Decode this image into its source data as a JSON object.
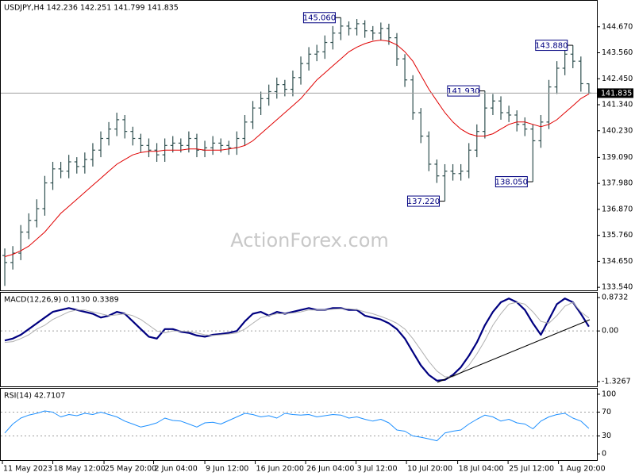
{
  "chart_data": [
    {
      "type": "ohlc",
      "title": "USDJPY,H4  142.236 142.251 141.799 141.835",
      "watermark": "ActionForex.com",
      "color": "#2f4f4f",
      "xlim": [
        -0.5,
        74
      ],
      "xticks": [
        {
          "value": -0.3,
          "label": "11 May 2023"
        },
        {
          "value": 6,
          "label": "18 May 12:00"
        },
        {
          "value": 12.4,
          "label": "25 May 20:00"
        },
        {
          "value": 18.6,
          "label": "2 Jun 04:00"
        },
        {
          "value": 25,
          "label": "9 Jun 12:00"
        },
        {
          "value": 31.3,
          "label": "16 Jun 20:00"
        },
        {
          "value": 37.6,
          "label": "26 Jun 04:00"
        },
        {
          "value": 43.9,
          "label": "3 Jul 12:00"
        },
        {
          "value": 50.2,
          "label": "10 Jul 20:00"
        },
        {
          "value": 56.6,
          "label": "18 Jul 04:00"
        },
        {
          "value": 62.9,
          "label": "25 Jul 12:00"
        },
        {
          "value": 69.2,
          "label": "1 Aug 20:00"
        }
      ],
      "ylim": [
        133.41,
        145.78
      ],
      "yticks": [
        {
          "value": 144.67,
          "label": "144.670"
        },
        {
          "value": 143.56,
          "label": "143.560"
        },
        {
          "value": 142.45,
          "label": "142.450"
        },
        {
          "value": 141.34,
          "label": "141.340"
        },
        {
          "value": 140.23,
          "label": "140.230"
        },
        {
          "value": 139.09,
          "label": "139.090"
        },
        {
          "value": 137.98,
          "label": "137.980"
        },
        {
          "value": 136.87,
          "label": "136.870"
        },
        {
          "value": 135.76,
          "label": "135.760"
        },
        {
          "value": 134.65,
          "label": "134.650"
        },
        {
          "value": 133.54,
          "label": "133.540"
        }
      ],
      "open": [
        134.9,
        134.6,
        135.0,
        135.9,
        136.4,
        136.9,
        138.0,
        138.6,
        138.5,
        138.9,
        138.7,
        139.0,
        139.4,
        139.9,
        140.3,
        140.7,
        140.2,
        139.9,
        139.6,
        139.4,
        139.2,
        139.6,
        139.7,
        139.6,
        139.9,
        139.4,
        139.5,
        139.7,
        139.6,
        139.5,
        139.9,
        140.6,
        141.2,
        141.6,
        141.9,
        142.2,
        142.0,
        142.5,
        143.1,
        143.5,
        143.6,
        144.0,
        144.4,
        144.7,
        144.6,
        144.8,
        144.5,
        144.4,
        144.6,
        144.2,
        143.3,
        142.4,
        141.0,
        140.0,
        138.8,
        138.3,
        138.5,
        138.4,
        138.5,
        139.4,
        140.2,
        141.2,
        141.5,
        141.0,
        140.9,
        140.5,
        140.3,
        139.8,
        140.6,
        142.1,
        142.9,
        143.5,
        143.2,
        142.236
      ],
      "high": [
        135.2,
        135.3,
        136.2,
        136.7,
        137.3,
        138.3,
        138.9,
        138.9,
        139.2,
        139.1,
        139.3,
        139.7,
        140.2,
        140.6,
        141.0,
        140.9,
        140.4,
        140.1,
        139.9,
        139.7,
        139.9,
        140.0,
        139.9,
        140.2,
        140.1,
        139.8,
        140.0,
        139.9,
        139.8,
        140.2,
        140.9,
        141.5,
        141.9,
        142.2,
        142.5,
        142.4,
        142.8,
        143.4,
        143.8,
        143.9,
        144.3,
        144.7,
        145.06,
        144.9,
        145.0,
        144.95,
        144.7,
        144.85,
        144.8,
        144.4,
        143.5,
        142.6,
        141.2,
        140.2,
        139.0,
        138.8,
        138.8,
        138.8,
        139.7,
        140.5,
        141.93,
        141.8,
        141.7,
        141.3,
        141.1,
        140.8,
        140.5,
        140.9,
        142.4,
        143.2,
        143.8,
        143.88,
        143.4,
        142.251
      ],
      "low": [
        133.6,
        134.3,
        134.7,
        135.6,
        136.1,
        136.6,
        137.7,
        138.2,
        138.2,
        138.4,
        138.4,
        138.7,
        139.1,
        139.6,
        140.0,
        139.9,
        139.6,
        139.3,
        139.1,
        138.9,
        138.9,
        139.3,
        139.3,
        139.3,
        139.1,
        139.1,
        139.2,
        139.3,
        139.2,
        139.2,
        139.6,
        140.3,
        140.9,
        141.3,
        141.6,
        141.7,
        141.7,
        142.2,
        142.8,
        143.2,
        143.3,
        143.7,
        144.1,
        144.3,
        144.3,
        144.2,
        144.1,
        144.1,
        143.9,
        143.0,
        142.1,
        140.7,
        139.7,
        138.5,
        138.0,
        137.22,
        138.1,
        138.1,
        138.2,
        139.1,
        139.9,
        140.9,
        140.7,
        140.6,
        140.2,
        140.0,
        138.05,
        139.5,
        140.3,
        141.8,
        142.6,
        142.9,
        141.9,
        141.799
      ],
      "close": [
        134.6,
        135.0,
        135.9,
        136.4,
        136.9,
        138.0,
        138.6,
        138.5,
        138.9,
        138.7,
        139.0,
        139.4,
        139.9,
        140.3,
        140.7,
        140.2,
        139.9,
        139.6,
        139.4,
        139.2,
        139.6,
        139.7,
        139.6,
        139.9,
        139.4,
        139.5,
        139.7,
        139.6,
        139.5,
        139.9,
        140.6,
        141.2,
        141.6,
        141.9,
        142.2,
        142.0,
        142.5,
        143.1,
        143.5,
        143.6,
        144.0,
        144.4,
        144.7,
        144.6,
        144.8,
        144.5,
        144.4,
        144.6,
        144.2,
        143.3,
        142.4,
        141.0,
        140.0,
        138.8,
        138.3,
        138.5,
        138.4,
        138.5,
        139.4,
        140.2,
        141.2,
        141.5,
        141.0,
        140.9,
        140.5,
        140.3,
        139.8,
        140.6,
        142.1,
        142.9,
        143.5,
        143.2,
        142.24,
        141.835
      ],
      "overlays": [
        {
          "color": "#e00000",
          "values": [
            134.85,
            134.95,
            135.1,
            135.3,
            135.6,
            135.9,
            136.3,
            136.7,
            137.0,
            137.3,
            137.6,
            137.9,
            138.2,
            138.5,
            138.8,
            139.0,
            139.2,
            139.3,
            139.35,
            139.35,
            139.4,
            139.4,
            139.4,
            139.45,
            139.45,
            139.4,
            139.4,
            139.4,
            139.45,
            139.5,
            139.6,
            139.8,
            140.1,
            140.4,
            140.7,
            141.0,
            141.3,
            141.6,
            142.0,
            142.4,
            142.7,
            143.0,
            143.3,
            143.6,
            143.8,
            143.95,
            144.05,
            144.1,
            144.05,
            143.9,
            143.6,
            143.2,
            142.6,
            142.0,
            141.5,
            141.0,
            140.6,
            140.3,
            140.1,
            140.0,
            140.0,
            140.1,
            140.3,
            140.5,
            140.6,
            140.6,
            140.5,
            140.4,
            140.5,
            140.7,
            141.0,
            141.3,
            141.6,
            141.8
          ]
        }
      ],
      "annotations": [
        {
          "label": "145.060",
          "value": 145.06
        },
        {
          "label": "141.930",
          "value": 141.93
        },
        {
          "label": "137.220",
          "value": 137.22
        },
        {
          "label": "138.050",
          "value": 138.05
        },
        {
          "label": "143.880",
          "value": 143.88
        }
      ]
    },
    {
      "type": "line",
      "title": "MACD(12,26,9) 0.1130 0.3389",
      "ylim": [
        -1.45,
        1.0
      ],
      "yticks": [
        0.8732,
        {
          "value": 0,
          "label": "0.00"
        },
        -1.3267
      ],
      "levels": [
        0
      ],
      "series": [
        {
          "color": "#000080",
          "line_width": 2.2,
          "values": [
            -0.25,
            -0.2,
            -0.1,
            0.05,
            0.2,
            0.35,
            0.5,
            0.55,
            0.6,
            0.55,
            0.5,
            0.45,
            0.35,
            0.4,
            0.5,
            0.45,
            0.25,
            0.05,
            -0.15,
            -0.2,
            0.05,
            0.05,
            -0.02,
            -0.05,
            -0.12,
            -0.15,
            -0.1,
            -0.08,
            -0.05,
            0.0,
            0.25,
            0.45,
            0.5,
            0.4,
            0.5,
            0.45,
            0.5,
            0.55,
            0.6,
            0.55,
            0.55,
            0.6,
            0.6,
            0.55,
            0.55,
            0.4,
            0.35,
            0.3,
            0.2,
            0.05,
            -0.2,
            -0.55,
            -0.9,
            -1.15,
            -1.3,
            -1.28,
            -1.15,
            -0.95,
            -0.65,
            -0.3,
            0.15,
            0.5,
            0.75,
            0.85,
            0.75,
            0.55,
            0.2,
            -0.1,
            0.3,
            0.7,
            0.85,
            0.75,
            0.45,
            0.113
          ]
        },
        {
          "color": "#b0b0b0",
          "line_width": 1,
          "values": [
            -0.3,
            -0.28,
            -0.2,
            -0.1,
            0.05,
            0.15,
            0.3,
            0.4,
            0.5,
            0.55,
            0.55,
            0.5,
            0.45,
            0.4,
            0.42,
            0.45,
            0.4,
            0.3,
            0.15,
            0.0,
            -0.05,
            0.0,
            0.0,
            -0.02,
            -0.05,
            -0.1,
            -0.12,
            -0.1,
            -0.08,
            -0.05,
            0.05,
            0.2,
            0.35,
            0.4,
            0.45,
            0.45,
            0.47,
            0.5,
            0.55,
            0.55,
            0.55,
            0.57,
            0.58,
            0.58,
            0.56,
            0.5,
            0.45,
            0.38,
            0.3,
            0.2,
            0.05,
            -0.2,
            -0.5,
            -0.8,
            -1.05,
            -1.2,
            -1.2,
            -1.1,
            -0.9,
            -0.6,
            -0.25,
            0.15,
            0.45,
            0.7,
            0.75,
            0.7,
            0.5,
            0.25,
            0.2,
            0.4,
            0.65,
            0.75,
            0.5,
            0.3389
          ]
        }
      ]
    },
    {
      "type": "line",
      "title": "RSI(14) 42.7107",
      "ylim": [
        -10.5,
        109.2
      ],
      "yticks": [
        100,
        70,
        30,
        0
      ],
      "levels": [
        70,
        30
      ],
      "series": [
        {
          "color": "#1e90ff",
          "line_width": 1,
          "values": [
            35,
            50,
            60,
            65,
            68,
            72,
            70,
            62,
            66,
            64,
            68,
            66,
            70,
            66,
            62,
            55,
            50,
            45,
            48,
            52,
            60,
            56,
            55,
            50,
            45,
            52,
            53,
            50,
            56,
            62,
            68,
            66,
            62,
            64,
            60,
            68,
            66,
            65,
            66,
            62,
            64,
            66,
            65,
            60,
            62,
            58,
            55,
            58,
            52,
            40,
            38,
            30,
            28,
            25,
            22,
            35,
            38,
            40,
            50,
            58,
            65,
            62,
            55,
            58,
            52,
            50,
            42,
            55,
            62,
            66,
            68,
            60,
            55,
            42.7107
          ]
        }
      ]
    }
  ]
}
